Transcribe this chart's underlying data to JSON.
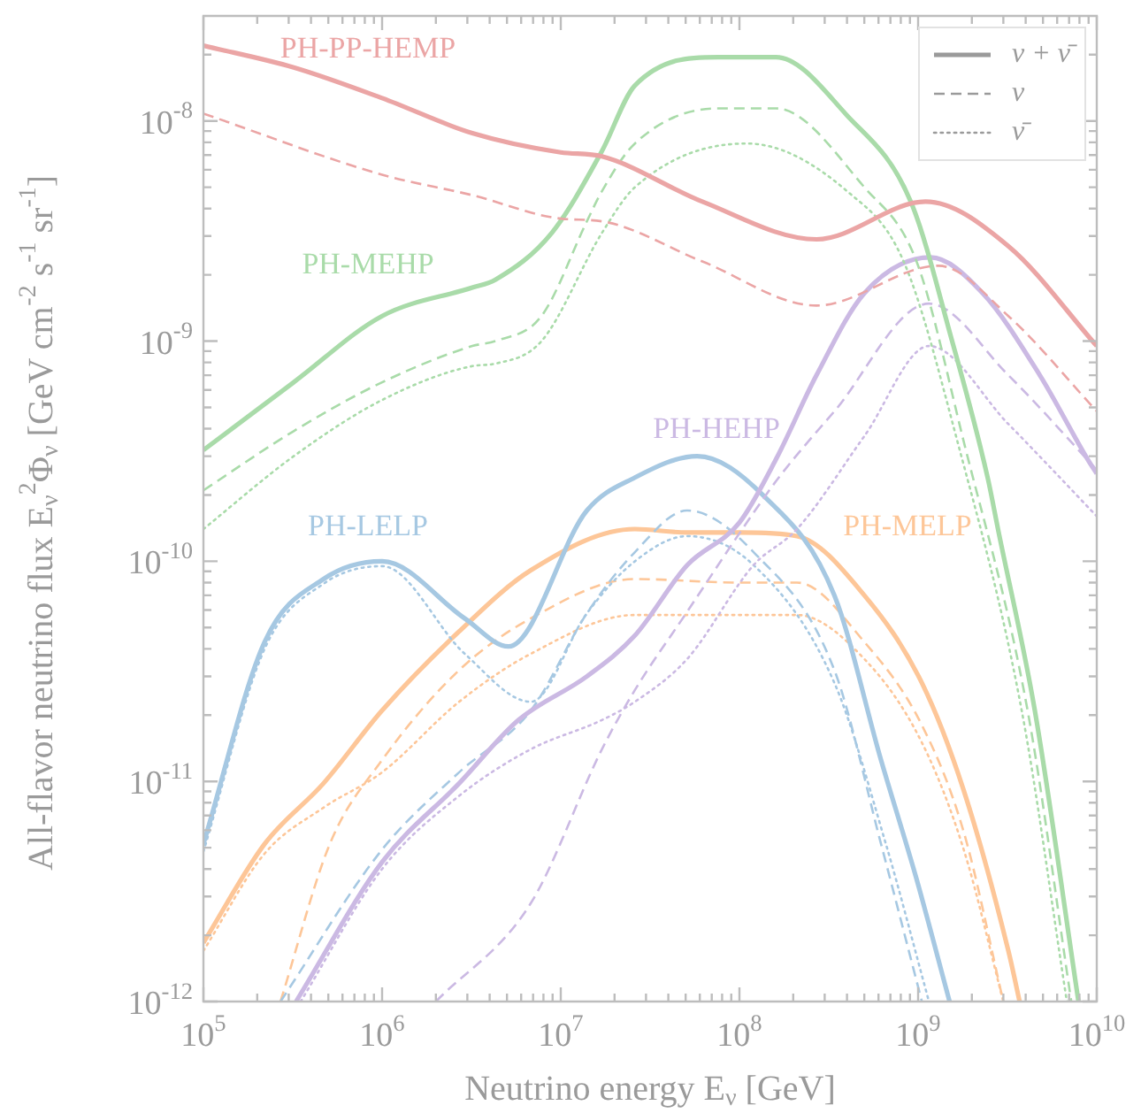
{
  "chart_data": {
    "type": "line",
    "xlabel": "Neutrino energy E$_{ν}$ [GeV]",
    "ylabel": "All-flavor neutrino flux E$_{ν}$$^{2}$Φ$_{ν}$ [GeV cm$^{-2}$ s$^{-1}$ sr$^{-1}$]",
    "log": "xy",
    "marker": "none",
    "xlim": [
      100000.0,
      10000000000.0
    ],
    "ylim": [
      1e-12,
      3e-08
    ],
    "xticks": [
      {
        "value": 100000.0,
        "label": "10$^{5}$"
      },
      {
        "value": 200000.0,
        "label": null
      },
      {
        "value": 300000.0,
        "label": null
      },
      {
        "value": 400000.0,
        "label": null
      },
      {
        "value": 500000.0,
        "label": null
      },
      {
        "value": 600000.0,
        "label": null
      },
      {
        "value": 700000.0,
        "label": null
      },
      {
        "value": 800000.0,
        "label": null
      },
      {
        "value": 900000.0,
        "label": null
      },
      {
        "value": 1000000.0,
        "label": "10$^{6}$"
      },
      {
        "value": 2000000.0,
        "label": null
      },
      {
        "value": 3000000.0,
        "label": null
      },
      {
        "value": 4000000.0,
        "label": null
      },
      {
        "value": 5000000.0,
        "label": null
      },
      {
        "value": 6000000.0,
        "label": null
      },
      {
        "value": 7000000.0,
        "label": null
      },
      {
        "value": 8000000.0,
        "label": null
      },
      {
        "value": 9000000.0,
        "label": null
      },
      {
        "value": 10000000.0,
        "label": "10$^{7}$"
      },
      {
        "value": 20000000.0,
        "label": null
      },
      {
        "value": 30000000.0,
        "label": null
      },
      {
        "value": 40000000.0,
        "label": null
      },
      {
        "value": 50000000.0,
        "label": null
      },
      {
        "value": 60000000.0,
        "label": null
      },
      {
        "value": 70000000.0,
        "label": null
      },
      {
        "value": 80000000.0,
        "label": null
      },
      {
        "value": 90000000.0,
        "label": null
      },
      {
        "value": 100000000.0,
        "label": "10$^{8}$"
      },
      {
        "value": 200000000.0,
        "label": null
      },
      {
        "value": 300000000.0,
        "label": null
      },
      {
        "value": 400000000.0,
        "label": null
      },
      {
        "value": 500000000.0,
        "label": null
      },
      {
        "value": 600000000.0,
        "label": null
      },
      {
        "value": 700000000.0,
        "label": null
      },
      {
        "value": 800000000.0,
        "label": null
      },
      {
        "value": 900000000.0,
        "label": null
      },
      {
        "value": 1000000000.0,
        "label": "10$^{9}$"
      },
      {
        "value": 2000000000.0,
        "label": null
      },
      {
        "value": 3000000000.0,
        "label": null
      },
      {
        "value": 4000000000.0,
        "label": null
      },
      {
        "value": 5000000000.0,
        "label": null
      },
      {
        "value": 6000000000.0,
        "label": null
      },
      {
        "value": 7000000000.0,
        "label": null
      },
      {
        "value": 8000000000.0,
        "label": null
      },
      {
        "value": 9000000000.0,
        "label": null
      },
      {
        "value": 10000000000.0,
        "label": "10$^{10}$"
      }
    ],
    "yticks": [
      {
        "value": 1e-12,
        "label": "10$^{-12}$"
      },
      {
        "value": 2e-12,
        "label": null
      },
      {
        "value": 3e-12,
        "label": null
      },
      {
        "value": 4e-12,
        "label": null
      },
      {
        "value": 5e-12,
        "label": null
      },
      {
        "value": 6e-12,
        "label": null
      },
      {
        "value": 7e-12,
        "label": null
      },
      {
        "value": 8e-12,
        "label": null
      },
      {
        "value": 9e-12,
        "label": null
      },
      {
        "value": 1e-11,
        "label": "10$^{-11}$"
      },
      {
        "value": 2e-11,
        "label": null
      },
      {
        "value": 3e-11,
        "label": null
      },
      {
        "value": 4e-11,
        "label": null
      },
      {
        "value": 5e-11,
        "label": null
      },
      {
        "value": 6e-11,
        "label": null
      },
      {
        "value": 7e-11,
        "label": null
      },
      {
        "value": 8e-11,
        "label": null
      },
      {
        "value": 9e-11,
        "label": null
      },
      {
        "value": 1e-10,
        "label": "10$^{-10}$"
      },
      {
        "value": 2e-10,
        "label": null
      },
      {
        "value": 3e-10,
        "label": null
      },
      {
        "value": 4e-10,
        "label": null
      },
      {
        "value": 5e-10,
        "label": null
      },
      {
        "value": 6e-10,
        "label": null
      },
      {
        "value": 7e-10,
        "label": null
      },
      {
        "value": 8e-10,
        "label": null
      },
      {
        "value": 9e-10,
        "label": null
      },
      {
        "value": 1e-09,
        "label": "10$^{-9}$"
      },
      {
        "value": 2e-09,
        "label": null
      },
      {
        "value": 3e-09,
        "label": null
      },
      {
        "value": 4e-09,
        "label": null
      },
      {
        "value": 5e-09,
        "label": null
      },
      {
        "value": 6e-09,
        "label": null
      },
      {
        "value": 7e-09,
        "label": null
      },
      {
        "value": 8e-09,
        "label": null
      },
      {
        "value": 9e-09,
        "label": null
      },
      {
        "value": 1e-08,
        "label": "10$^{-8}$"
      },
      {
        "value": 2e-08,
        "label": null
      }
    ],
    "series": [
      {
        "name": "PH-PP-HEMP",
        "color": "#eba5a5",
        "line_style": "solid",
        "x": [
          100000.0,
          320000.0,
          1000000.0,
          3200000.0,
          10000000.0,
          17000000.0,
          62000000.0,
          270000000.0,
          1100000000.0,
          3200000000.0,
          10000000000.0
        ],
        "values": [
          2.2e-08,
          1.75e-08,
          1.27e-08,
          8.8e-09,
          7.2e-09,
          6.9e-09,
          4.3e-09,
          2.9e-09,
          4.3e-09,
          2.7e-09,
          9.5e-10
        ]
      },
      {
        "color": "#eba5a5",
        "line_style": "dashed",
        "x": [
          100000.0,
          1000000.0,
          3200000.0,
          10000000.0,
          17000000.0,
          62000000.0,
          270000000.0,
          1300000000.0,
          3200000000.0,
          10000000000.0
        ],
        "values": [
          1.08e-08,
          5.7e-09,
          4.6e-09,
          3.6e-09,
          3.5e-09,
          2.3e-09,
          1.45e-09,
          2.2e-09,
          1.3e-09,
          4.8e-10
        ]
      },
      {
        "name": "PH-MEHP",
        "color": "#a9dba9",
        "line_style": "solid",
        "x": [
          100000.0,
          320000.0,
          1000000.0,
          3200000.0,
          4300000.0,
          8900000.0,
          17000000.0,
          26000000.0,
          76000000.0,
          160000000.0,
          400000000.0,
          910000000.0,
          1550000000.0,
          2450000000.0,
          2800000000.0,
          4500000000.0,
          7900000000.0
        ],
        "values": [
          3.2e-10,
          6.5e-10,
          1.3e-09,
          1.75e-09,
          1.9e-09,
          3.1e-09,
          7.3e-09,
          1.45e-08,
          1.95e-08,
          1.95e-08,
          1.06e-08,
          4.3e-09,
          1e-09,
          2.4e-10,
          1.4e-10,
          2.1e-11,
          1e-12
        ]
      },
      {
        "color": "#a9dba9",
        "line_style": "dashed",
        "x": [
          100000.0,
          320000.0,
          1000000.0,
          3200000.0,
          4300000.0,
          7800000.0,
          14000000.0,
          17000000.0,
          26000000.0,
          76000000.0,
          160000000.0,
          500000000.0,
          980000000.0,
          1800000000.0,
          4100000000.0,
          7200000000.0
        ],
        "values": [
          2.1e-10,
          3.9e-10,
          6.5e-10,
          9.5e-10,
          1e-09,
          1.3e-09,
          3.5e-09,
          4.8e-09,
          7.9e-09,
          1.14e-08,
          1.14e-08,
          5e-09,
          2.3e-09,
          3.5e-10,
          2.1e-11,
          1e-12
        ]
      },
      {
        "color": "#a9dba9",
        "line_style": "dotted",
        "x": [
          100000.0,
          320000.0,
          1000000.0,
          3200000.0,
          4300000.0,
          7800000.0,
          17000000.0,
          26000000.0,
          110000000.0,
          400000000.0,
          830000000.0,
          1660000000.0,
          3800000000.0,
          6800000000.0
        ],
        "values": [
          1.4e-10,
          3e-10,
          5.4e-10,
          7.7e-10,
          7.9e-10,
          1e-09,
          3.1e-09,
          5e-09,
          7.9e-09,
          4.8e-09,
          2.3e-09,
          3.5e-10,
          2.1e-11,
          1e-12
        ]
      },
      {
        "name": "PH-HEHP",
        "color": "#cbb9e3",
        "line_style": "solid",
        "x": [
          330000.0,
          1000000.0,
          2700000.0,
          5800000.0,
          14000000.0,
          26000000.0,
          51000000.0,
          100000000.0,
          160000000.0,
          270000000.0,
          500000000.0,
          1170000000.0,
          2300000000.0,
          4800000000.0,
          8900000000.0,
          10000000000.0
        ],
        "values": [
          1e-12,
          4.3e-12,
          9.8e-12,
          1.9e-11,
          3e-11,
          4.6e-11,
          9.6e-11,
          1.5e-10,
          2.9e-10,
          7e-10,
          1.65e-09,
          2.4e-09,
          1.65e-09,
          7e-10,
          2.9e-10,
          2.5e-10
        ]
      },
      {
        "color": "#cbb9e3",
        "line_style": "dashed",
        "x": [
          2000000.0,
          6800000.0,
          17000000.0,
          26000000.0,
          51000000.0,
          110000000.0,
          166000000.0,
          340000000.0,
          1150000000.0,
          3200000000.0,
          10000000000.0
        ],
        "values": [
          1e-12,
          2.8e-12,
          1.4e-11,
          2.6e-11,
          5.9e-11,
          1.5e-10,
          2.4e-10,
          4.8e-10,
          1.48e-09,
          7e-10,
          2.6e-10
        ]
      },
      {
        "color": "#cbb9e3",
        "line_style": "dotted",
        "x": [
          350000.0,
          1000000.0,
          2700000.0,
          6800000.0,
          17000000.0,
          26000000.0,
          51000000.0,
          120000000.0,
          210000000.0,
          500000000.0,
          1150000000.0,
          3200000000.0,
          10000000000.0
        ],
        "values": [
          1e-12,
          4e-12,
          8.6e-12,
          1.4e-11,
          1.9e-11,
          2.3e-11,
          3.6e-11,
          9.6e-11,
          1.4e-10,
          3.7e-10,
          9.5e-10,
          4.2e-10,
          1.6e-10
        ]
      },
      {
        "name": "PH-LELP",
        "color": "#a6c8e2",
        "line_style": "solid",
        "x": [
          100000.0,
          220000.0,
          470000.0,
          1000000.0,
          2900000.0,
          5100000.0,
          14000000.0,
          26000000.0,
          58000000.0,
          135000000.0,
          340000000.0,
          620000000.0,
          980000000.0,
          1500000000.0
        ],
        "values": [
          5.2e-12,
          4.3e-11,
          8.3e-11,
          1e-10,
          5.5e-11,
          4.1e-11,
          1.7e-10,
          2.4e-10,
          3e-10,
          2e-10,
          7e-11,
          1.25e-11,
          3.6e-12,
          1e-12
        ]
      },
      {
        "color": "#a6c8e2",
        "line_style": "dashed",
        "x": [
          270000.0,
          1000000.0,
          2700000.0,
          6800000.0,
          14000000.0,
          26000000.0,
          51000000.0,
          120000000.0,
          340000000.0,
          620000000.0,
          1050000000.0
        ],
        "values": [
          1e-12,
          4.9e-12,
          1.1e-11,
          2.1e-11,
          5.8e-11,
          1.1e-10,
          1.7e-10,
          1.1e-10,
          3.2e-11,
          5.2e-12,
          1e-12
        ]
      },
      {
        "color": "#a6c8e2",
        "line_style": "dotted",
        "x": [
          100000.0,
          220000.0,
          470000.0,
          1000000.0,
          2900000.0,
          6800000.0,
          14000000.0,
          26000000.0,
          51000000.0,
          120000000.0,
          340000000.0,
          660000000.0,
          1150000000.0
        ],
        "values": [
          4.8e-12,
          4e-11,
          7.9e-11,
          9.5e-11,
          3.8e-11,
          2.3e-11,
          5.8e-11,
          1e-10,
          1.3e-10,
          9.6e-11,
          2.8e-11,
          5.2e-12,
          1e-12
        ]
      },
      {
        "name": "PH-MELP",
        "color": "#fdc698",
        "line_style": "solid",
        "x": [
          100000.0,
          220000.0,
          470000.0,
          1000000.0,
          2700000.0,
          6800000.0,
          26000000.0,
          51000000.0,
          100000000.0,
          210000000.0,
          500000000.0,
          1050000000.0,
          1800000000.0,
          3200000000.0,
          3700000000.0
        ],
        "values": [
          1.85e-12,
          5.2e-12,
          9.8e-12,
          2.1e-11,
          4.8e-11,
          9.1e-11,
          1.4e-10,
          1.35e-10,
          1.35e-10,
          1.3e-10,
          7e-11,
          2.8e-11,
          9.1e-12,
          1.7e-12,
          1e-12
        ]
      },
      {
        "color": "#fdc698",
        "line_style": "dashed",
        "x": [
          270000.0,
          510000.0,
          1000000.0,
          2700000.0,
          6800000.0,
          26000000.0,
          100000000.0,
          210000000.0,
          500000000.0,
          1050000000.0,
          1800000000.0,
          3000000000.0
        ],
        "values": [
          1e-12,
          5.2e-12,
          1.25e-11,
          3.2e-11,
          5.5e-11,
          8.3e-11,
          8e-11,
          8e-11,
          4.3e-11,
          1.8e-11,
          5.9e-12,
          1e-12
        ]
      },
      {
        "color": "#fdc698",
        "line_style": "dotted",
        "x": [
          100000.0,
          220000.0,
          470000.0,
          1000000.0,
          2700000.0,
          6800000.0,
          26000000.0,
          100000000.0,
          210000000.0,
          500000000.0,
          1050000000.0,
          1800000000.0,
          3000000000.0
        ],
        "values": [
          1.7e-12,
          4.7e-12,
          7.6e-12,
          1.1e-11,
          2.3e-11,
          3.8e-11,
          5.7e-11,
          5.7e-11,
          5.7e-11,
          3.6e-11,
          1.5e-11,
          4.9e-12,
          1e-12
        ]
      }
    ],
    "annotations": [
      "ν + ν̄",
      "ν",
      "ν̄"
    ]
  }
}
